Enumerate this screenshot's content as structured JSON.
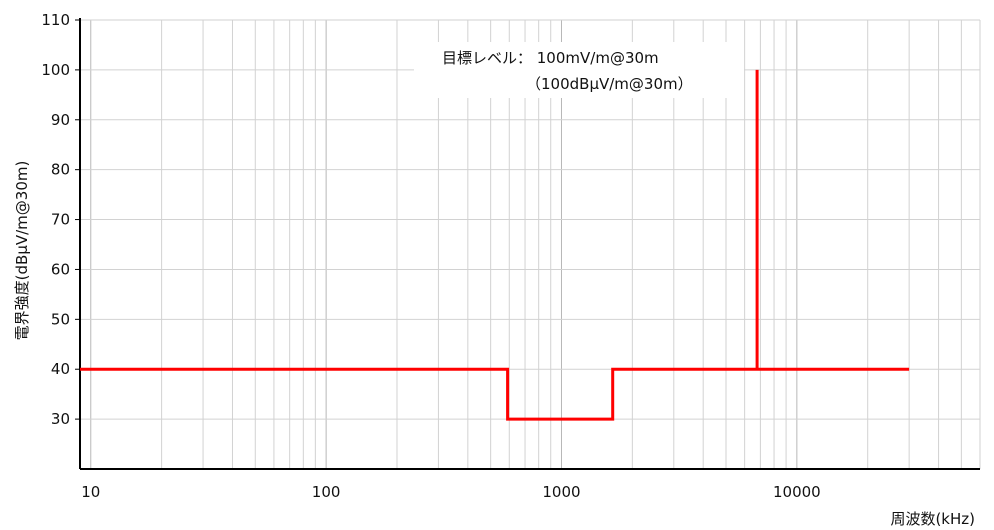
{
  "chart_data": {
    "type": "line",
    "title": "",
    "xlabel": "周波数(kHz)",
    "ylabel": "電界強度(dBμV/m@30m)",
    "xscale": "log",
    "xlim": [
      9,
      60000
    ],
    "ylim": [
      20,
      110
    ],
    "yticks": [
      30,
      40,
      50,
      60,
      70,
      80,
      90,
      100,
      110
    ],
    "xticks": [
      10,
      100,
      1000,
      10000
    ],
    "xtick_labels": [
      "10",
      "100",
      "1000",
      "10000"
    ],
    "grid": true,
    "series": [
      {
        "color": "#ff0000",
        "x": [
          9,
          590,
          590,
          1650,
          1650,
          6780,
          6780,
          6780,
          30000
        ],
        "y": [
          40,
          40,
          30,
          30,
          40,
          40,
          100,
          40,
          40
        ]
      }
    ],
    "annotation": {
      "line1": "目標レベル：  100mV/m@30m",
      "line2": "（100dBμV/m@30m）"
    }
  }
}
